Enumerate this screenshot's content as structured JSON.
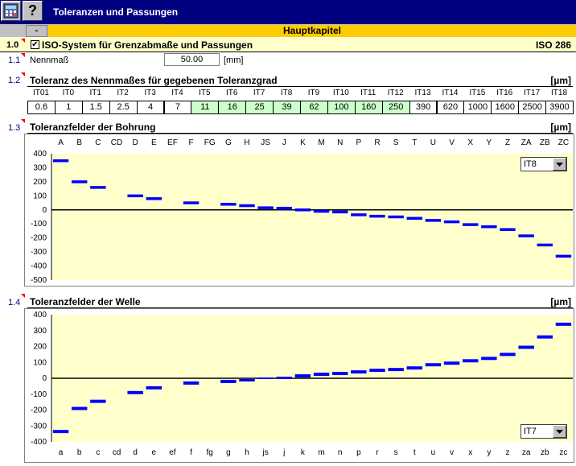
{
  "titlebar": {
    "title": "Toleranzen und Passungen",
    "icon_calc": "calculator-icon",
    "icon_help": "help-icon",
    "help_glyph": "?"
  },
  "nav": {
    "dash_label": "-",
    "main_chapter": "Hauptkapitel"
  },
  "section_1_0": {
    "num": "1.0",
    "title": "ISO-System für Grenzabmaße und Passungen",
    "standard": "ISO 286",
    "checked": true
  },
  "section_1_1": {
    "num": "1.1",
    "label": "Nennmaß",
    "value": "50.00",
    "unit": "[mm]"
  },
  "section_1_2": {
    "num": "1.2",
    "title": "Toleranz des Nennmaßes für gegebenen Toleranzgrad",
    "unit": "[µm]",
    "grades": [
      "IT01",
      "IT0",
      "IT1",
      "IT2",
      "IT3",
      "IT4",
      "IT5",
      "IT6",
      "IT7",
      "IT8",
      "IT9",
      "IT10",
      "IT11",
      "IT12",
      "IT13",
      "IT14",
      "IT15",
      "IT16",
      "IT17",
      "IT18"
    ],
    "values": [
      "0.6",
      "1",
      "1.5",
      "2.5",
      "4",
      "7",
      "11",
      "16",
      "25",
      "39",
      "62",
      "100",
      "160",
      "250",
      "390",
      "620",
      "1000",
      "1600",
      "2500",
      "3900"
    ],
    "highlighted": [
      "IT5",
      "IT6",
      "IT7",
      "IT8",
      "IT9",
      "IT10",
      "IT11",
      "IT12"
    ],
    "highlight_color": "#ccffcc"
  },
  "section_1_3": {
    "num": "1.3",
    "title": "Toleranzfelder der Bohrung",
    "unit": "[µm]",
    "select_value": "IT8"
  },
  "section_1_4": {
    "num": "1.4",
    "title": "Toleranzfelder der Welle",
    "unit": "[µm]",
    "select_value": "IT7"
  },
  "chart_data": [
    {
      "type": "bar",
      "title": "Toleranzfelder der Bohrung",
      "categories": [
        "A",
        "B",
        "C",
        "CD",
        "D",
        "E",
        "EF",
        "F",
        "FG",
        "G",
        "H",
        "JS",
        "J",
        "K",
        "M",
        "N",
        "P",
        "R",
        "S",
        "T",
        "U",
        "V",
        "X",
        "Y",
        "Z",
        "ZA",
        "ZB",
        "ZC"
      ],
      "lower": [
        340,
        190,
        150,
        0,
        90,
        70,
        0,
        40,
        0,
        30,
        20,
        5,
        2,
        -10,
        -20,
        -25,
        -45,
        -55,
        -60,
        -70,
        -85,
        -95,
        -115,
        -130,
        -150,
        -195,
        -260,
        -340
      ],
      "upper": [
        360,
        210,
        170,
        0,
        110,
        90,
        0,
        60,
        0,
        50,
        40,
        25,
        22,
        10,
        0,
        -5,
        -25,
        -35,
        -40,
        -50,
        -65,
        -75,
        -95,
        -110,
        -130,
        -175,
        -240,
        -320
      ],
      "ylim": [
        -500,
        400
      ],
      "yticks": [
        400,
        300,
        200,
        100,
        0,
        -100,
        -200,
        -300,
        -400,
        -500
      ],
      "bar_color": "#0000ff",
      "plot_bg": "#ffffcc",
      "legend": "none"
    },
    {
      "type": "bar",
      "title": "Toleranzfelder der Welle",
      "categories": [
        "a",
        "b",
        "c",
        "cd",
        "d",
        "e",
        "ef",
        "f",
        "fg",
        "g",
        "h",
        "js",
        "j",
        "k",
        "m",
        "n",
        "p",
        "r",
        "s",
        "t",
        "u",
        "v",
        "x",
        "y",
        "z",
        "za",
        "zb",
        "zc"
      ],
      "lower": [
        -345,
        -200,
        -155,
        0,
        -100,
        -70,
        0,
        -40,
        0,
        -30,
        -20,
        -5,
        -5,
        5,
        15,
        20,
        30,
        40,
        45,
        55,
        75,
        85,
        100,
        115,
        140,
        185,
        250,
        330
      ],
      "upper": [
        -325,
        -180,
        -135,
        0,
        -80,
        -50,
        0,
        -20,
        0,
        -10,
        -5,
        5,
        10,
        25,
        35,
        40,
        50,
        60,
        65,
        75,
        95,
        105,
        120,
        135,
        160,
        205,
        270,
        350
      ],
      "ylim": [
        -400,
        400
      ],
      "yticks": [
        400,
        300,
        200,
        100,
        0,
        -100,
        -200,
        -300,
        -400
      ],
      "bar_color": "#0000ff",
      "plot_bg": "#ffffcc",
      "legend": "none"
    }
  ]
}
